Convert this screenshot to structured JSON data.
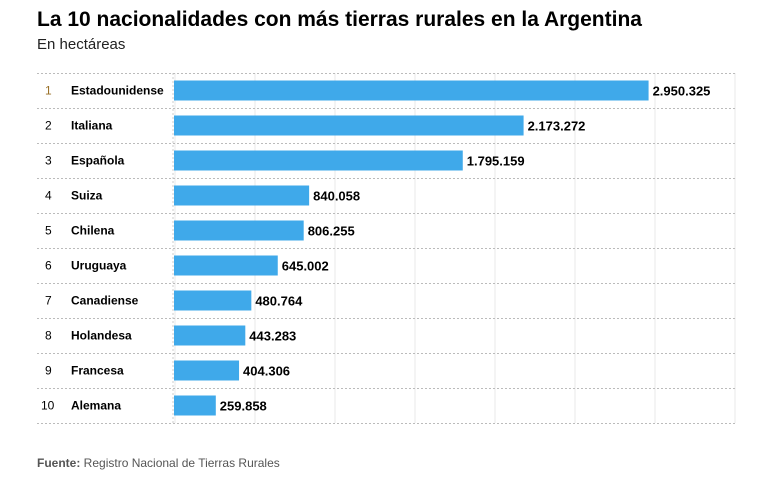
{
  "chart_data": {
    "type": "bar",
    "orientation": "horizontal",
    "title": "La 10 nacionalidades con más tierras rurales en la Argentina",
    "subtitle": "En hectáreas",
    "ranks": [
      "1",
      "2",
      "3",
      "4",
      "5",
      "6",
      "7",
      "8",
      "9",
      "10"
    ],
    "categories": [
      "Estadounidense",
      "Italiana",
      "Española",
      "Suiza",
      "Chilena",
      "Uruguaya",
      "Canadiense",
      "Holandesa",
      "Francesa",
      "Alemana"
    ],
    "values": [
      2950325,
      2173272,
      1795159,
      840058,
      806255,
      645002,
      480764,
      443283,
      404306,
      259858
    ],
    "labels": [
      "2.950.325",
      "2.173.272",
      "1.795.159",
      "840.058",
      "806.255",
      "645.002",
      "480.764",
      "443.283",
      "404.306",
      "259.858"
    ],
    "xlim": [
      0,
      3500000
    ],
    "grid": true
  },
  "colors": {
    "bar": "#3fa9ea",
    "first_rank": "#9a7128"
  },
  "footer": {
    "label": "Fuente:",
    "text": " Registro Nacional de Tierras Rurales"
  }
}
